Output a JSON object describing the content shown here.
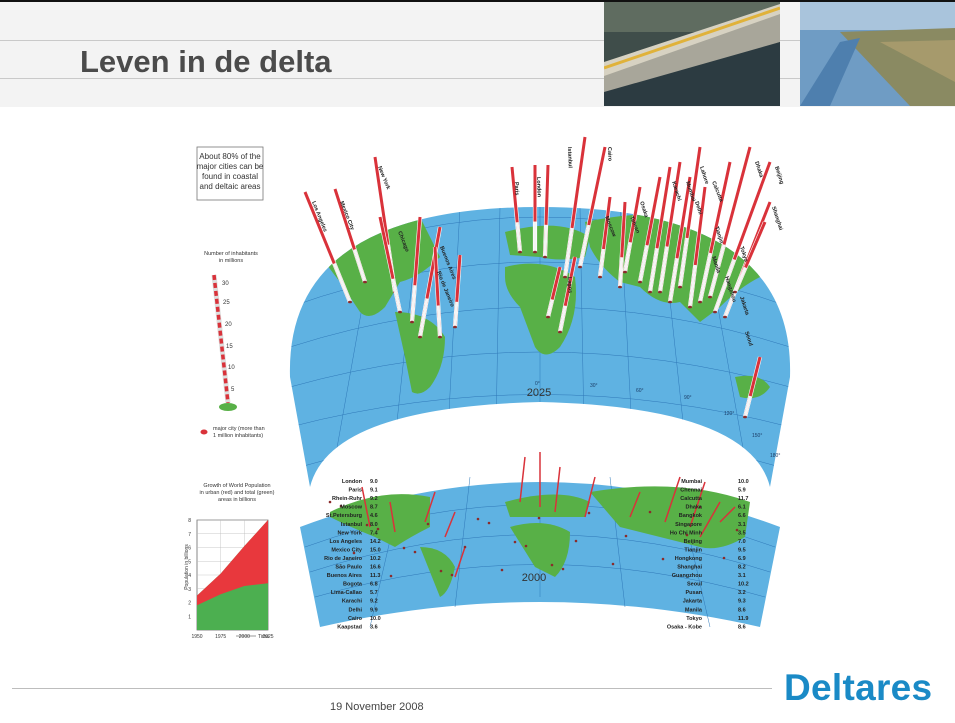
{
  "slide": {
    "title": "Leven in de delta",
    "date": "19 November 2008",
    "logo_text": "Deltares",
    "brand_color": "#1a8ac6"
  },
  "figure": {
    "callout": [
      "About 80% of the",
      "major cities can be",
      "found in coastal",
      "and deltaic areas"
    ],
    "scale_title": [
      "Number of inhabitants",
      "in millions"
    ],
    "scale_ticks": [
      "30",
      "25",
      "20",
      "15",
      "10",
      "5"
    ],
    "major_city_legend": [
      "major city (more than",
      "1 million inhabitants)"
    ],
    "map_year_top": "2025",
    "map_year_bottom": "2000",
    "top_map_city_labels": [
      "Los Angeles",
      "Mexico City",
      "New York",
      "Chicago",
      "Buenos Aires",
      "Rio de Janeiro",
      "Paris",
      "London",
      "Istanbul",
      "Cairo",
      "Moscow",
      "Tehran",
      "Lagos",
      "Karachi",
      "Mumbai",
      "Lahore",
      "Delhi",
      "Calcutta",
      "Dhaka",
      "Beijing",
      "Shanghai",
      "Tokyo",
      "Jakarta",
      "Manila",
      "Osaka",
      "Seoul",
      "Tianjin",
      "Hangzhou"
    ],
    "left_cities": [
      {
        "name": "London",
        "value": "9.0"
      },
      {
        "name": "Paris",
        "value": "9.1"
      },
      {
        "name": "Rhein-Ruhr",
        "value": "9.2"
      },
      {
        "name": "Moscow",
        "value": "8.7"
      },
      {
        "name": "St.Petersburg",
        "value": "4.6"
      },
      {
        "name": "Istanbul",
        "value": "8.0"
      },
      {
        "name": "New York",
        "value": "7.4"
      },
      {
        "name": "Los Angeles",
        "value": "14.2"
      },
      {
        "name": "Mexico City",
        "value": "15.0"
      },
      {
        "name": "Rio de Janeiro",
        "value": "10.2"
      },
      {
        "name": "São Paulo",
        "value": "16.6"
      },
      {
        "name": "Buenos Aires",
        "value": "11.3"
      },
      {
        "name": "Bogota",
        "value": "6.8"
      },
      {
        "name": "Lima-Callao",
        "value": "5.7"
      },
      {
        "name": "Karachi",
        "value": "9.2"
      },
      {
        "name": "Delhi",
        "value": "9.9"
      },
      {
        "name": "Cairo",
        "value": "10.0"
      },
      {
        "name": "Kaapstad",
        "value": "3.6"
      }
    ],
    "right_cities": [
      {
        "name": "Mumbai",
        "value": "10.0"
      },
      {
        "name": "Chennai",
        "value": "5.9"
      },
      {
        "name": "Calcutta",
        "value": "11.7"
      },
      {
        "name": "Dhaka",
        "value": "6.1"
      },
      {
        "name": "Bangkok",
        "value": "6.6"
      },
      {
        "name": "Singapore",
        "value": "3.1"
      },
      {
        "name": "Ho Chi Minh",
        "value": "3.5"
      },
      {
        "name": "Beijing",
        "value": "7.0"
      },
      {
        "name": "Tianjin",
        "value": "9.5"
      },
      {
        "name": "Hongkong",
        "value": "6.9"
      },
      {
        "name": "Shanghai",
        "value": "8.2"
      },
      {
        "name": "Guangzhou",
        "value": "3.1"
      },
      {
        "name": "Seoul",
        "value": "10.2"
      },
      {
        "name": "Pusan",
        "value": "3.2"
      },
      {
        "name": "Jakarta",
        "value": "9.3"
      },
      {
        "name": "Manila",
        "value": "8.6"
      },
      {
        "name": "Tokyo",
        "value": "11.9"
      },
      {
        "name": "Osaka - Kobe",
        "value": "8.6"
      }
    ],
    "meridian_labels": [
      "0°",
      "30°",
      "60°",
      "90°",
      "120°",
      "150°",
      "180°"
    ],
    "pop_chart_title": [
      "Growth of World Population",
      "in urban (red) and total (green)",
      "areas in billions"
    ],
    "pop_chart_ylabel": "Population in billions",
    "pop_chart_xlabel": "Time",
    "pop_chart_yticks": [
      "1",
      "2",
      "3",
      "4",
      "5",
      "6",
      "7",
      "8"
    ],
    "pop_chart_xticks": [
      "1950",
      "1975",
      "2000",
      "2025"
    ],
    "colors": {
      "ocean": "#5fb2e2",
      "land": "#58b047",
      "pole_red": "#d9323a",
      "urban": "#e8383d",
      "total": "#4caf50"
    }
  },
  "chart_data": {
    "type": "area",
    "title": "Growth of World Population in urban (red) and total (green) areas in billions",
    "xlabel": "Time",
    "ylabel": "Population in billions",
    "x": [
      1950,
      1975,
      2000,
      2025
    ],
    "ylim": [
      0,
      8
    ],
    "series": [
      {
        "name": "urban",
        "values": [
          0.7,
          1.5,
          2.9,
          4.6
        ]
      },
      {
        "name": "total",
        "values": [
          2.5,
          4.1,
          6.1,
          8.0
        ]
      }
    ]
  }
}
